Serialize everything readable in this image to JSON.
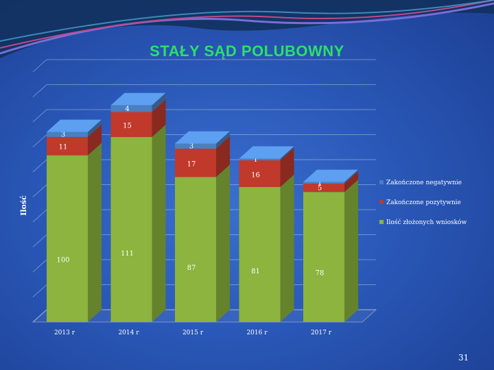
{
  "slide": {
    "title": "STAŁY SĄD POLUBOWNY",
    "page_number": "31"
  },
  "chart_data": {
    "type": "bar",
    "stacked": true,
    "three_d": true,
    "categories": [
      "2013 r",
      "2014 r",
      "2015 r",
      "2016 r",
      "2017 r"
    ],
    "ylabel": "Ilość",
    "xlabel": "",
    "ylim": [
      0,
      150
    ],
    "grid": true,
    "legend_position": "right",
    "series": [
      {
        "name": "Ilość złożonych wniosków",
        "values": [
          100,
          111,
          87,
          81,
          78
        ],
        "color": "#8cb43e"
      },
      {
        "name": "Zakończone pozytywnie",
        "values": [
          11,
          15,
          17,
          16,
          5
        ],
        "color": "#c0392b"
      },
      {
        "name": "Zakończone negatywnie",
        "values": [
          3,
          4,
          3,
          1,
          1
        ],
        "color": "#4a7fc0"
      }
    ]
  }
}
